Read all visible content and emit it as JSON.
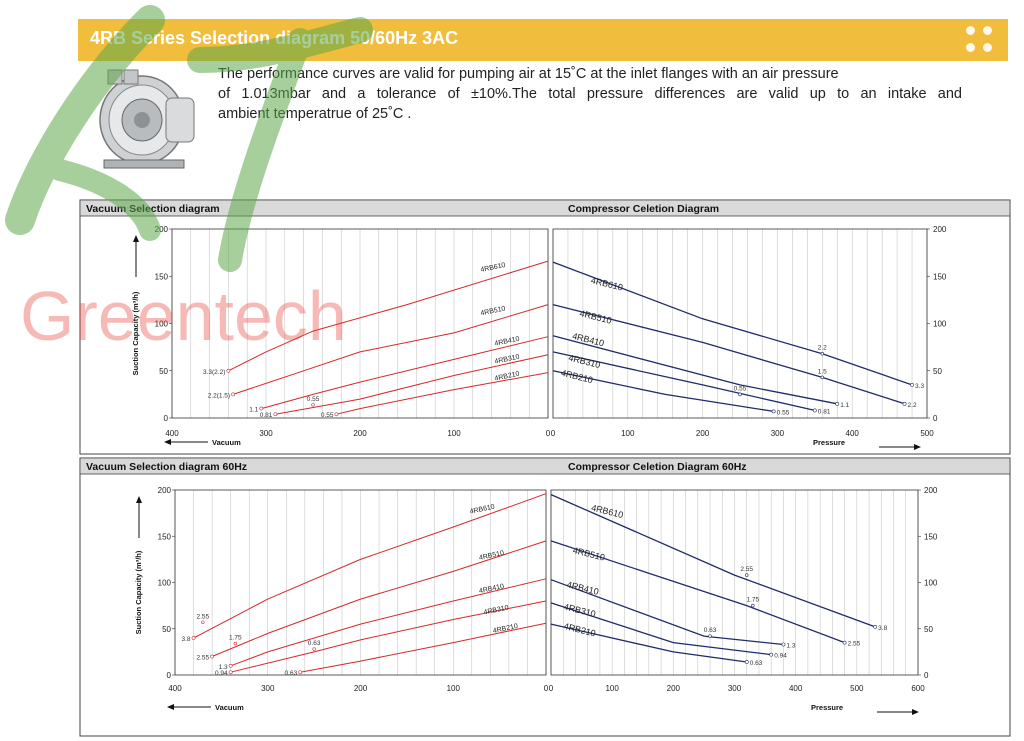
{
  "header": {
    "title": "4RB Series Selection diagram 50/60Hz 3AC"
  },
  "description": {
    "line1": "The performance curves are valid for pumping air at 15˚C at the inlet flanges with an air pressure",
    "line2": "of 1.013mbar and a tolerance of ±10%.The total pressure differences are valid up to an intake and",
    "line3": "ambient temperatrue of 25˚C ."
  },
  "watermark": {
    "text": "Greentech",
    "logo_color": "#5fa84a",
    "text_color": "#e83a30"
  },
  "colors": {
    "vacuum_line": "#d6282b",
    "pressure_line": "#1f2b6b",
    "banner": "#f1bd3c",
    "panel_header": "#d9d9d9"
  },
  "chart_data": [
    {
      "type": "line",
      "title": "Vacuum Selection diagram",
      "xlabel": "Vacuum",
      "ylabel": "Suction Capacity (m³/h)",
      "xlim": [
        400,
        0
      ],
      "ylim": [
        0,
        200
      ],
      "x_ticks": [
        "400",
        "300",
        "200",
        "100",
        "0"
      ],
      "y_ticks": [
        "0",
        "50",
        "100",
        "150",
        "200"
      ],
      "grid": true,
      "series": [
        {
          "name": "4RB610",
          "points": [
            [
              340,
              50
            ],
            [
              300,
              70
            ],
            [
              250,
              92
            ],
            [
              150,
              120
            ],
            [
              0,
              166
            ]
          ],
          "end_label": "3.3(2.2)",
          "label_x": 45,
          "label_y": 160
        },
        {
          "name": "4RB510",
          "points": [
            [
              335,
              25
            ],
            [
              260,
              50
            ],
            [
              200,
              70
            ],
            [
              100,
              90
            ],
            [
              0,
              120
            ]
          ],
          "end_label": "2.2(1.5)",
          "label_x": 45,
          "label_y": 114
        },
        {
          "name": "4RB410",
          "points": [
            [
              305,
              10
            ],
            [
              250,
              25
            ],
            [
              200,
              38
            ],
            [
              100,
              62
            ],
            [
              0,
              86
            ]
          ],
          "end_label": "1.1",
          "label_x": 30,
          "label_y": 82
        },
        {
          "name": "4RB310",
          "points": [
            [
              290,
              4
            ],
            [
              200,
              20
            ],
            [
              100,
              45
            ],
            [
              0,
              67
            ]
          ],
          "end_label": "0.81",
          "label_x": 30,
          "label_y": 63
        },
        {
          "name": "4RB210",
          "points": [
            [
              225,
              4
            ],
            [
              200,
              10
            ],
            [
              100,
              30
            ],
            [
              0,
              48
            ]
          ],
          "end_label": "0.55",
          "label_x": 30,
          "label_y": 45
        }
      ],
      "annotations": [
        {
          "text": "0.55",
          "x": 250,
          "y": 14
        }
      ]
    },
    {
      "type": "line",
      "title": "Compressor Celetion Diagram",
      "xlabel": "Pressure",
      "ylabel": "",
      "xlim": [
        0,
        500
      ],
      "ylim": [
        0,
        200
      ],
      "x_ticks": [
        "0",
        "100",
        "200",
        "300",
        "400",
        "500"
      ],
      "y_ticks": [
        "0",
        "50",
        "100",
        "150",
        "200"
      ],
      "grid": true,
      "series": [
        {
          "name": "4RB610",
          "points": [
            [
              0,
              165
            ],
            [
              200,
              105
            ],
            [
              360,
              68
            ],
            [
              480,
              35
            ]
          ],
          "end_label": "3.3",
          "label_x": 50,
          "label_y": 143
        },
        {
          "name": "4RB510",
          "points": [
            [
              0,
              120
            ],
            [
              200,
              80
            ],
            [
              360,
              43
            ],
            [
              470,
              15
            ]
          ],
          "end_label": "2.2",
          "label_x": 35,
          "label_y": 108
        },
        {
          "name": "4RB410",
          "points": [
            [
              0,
              87
            ],
            [
              250,
              35
            ],
            [
              380,
              15
            ]
          ],
          "end_label": "1.1",
          "label_x": 25,
          "label_y": 84
        },
        {
          "name": "4RB310",
          "points": [
            [
              0,
              70
            ],
            [
              200,
              35
            ],
            [
              350,
              8
            ]
          ],
          "end_label": "0.81",
          "label_x": 20,
          "label_y": 61
        },
        {
          "name": "4RB210",
          "points": [
            [
              0,
              50
            ],
            [
              150,
              25
            ],
            [
              295,
              7
            ]
          ],
          "end_label": "0.55",
          "label_x": 10,
          "label_y": 45
        }
      ],
      "annotations": [
        {
          "text": "2.2",
          "x": 360,
          "y": 68
        },
        {
          "text": "1.5",
          "x": 360,
          "y": 43
        },
        {
          "text": "0.55",
          "x": 250,
          "y": 25
        }
      ]
    },
    {
      "type": "line",
      "title": "Vacuum Selection diagram 60Hz",
      "xlabel": "Vacuum",
      "ylabel": "Suction Capacity (m³/h)",
      "xlim": [
        400,
        0
      ],
      "ylim": [
        0,
        200
      ],
      "x_ticks": [
        "400",
        "300",
        "200",
        "100",
        "0"
      ],
      "y_ticks": [
        "0",
        "50",
        "100",
        "150",
        "200"
      ],
      "grid": true,
      "series": [
        {
          "name": "4RB610",
          "points": [
            [
              380,
              40
            ],
            [
              300,
              82
            ],
            [
              200,
              125
            ],
            [
              100,
              160
            ],
            [
              0,
              196
            ]
          ],
          "end_label": "3.8",
          "label_x": 55,
          "label_y": 180
        },
        {
          "name": "4RB510",
          "points": [
            [
              360,
              20
            ],
            [
              300,
              45
            ],
            [
              200,
              82
            ],
            [
              100,
              112
            ],
            [
              0,
              145
            ]
          ],
          "end_label": "2.55",
          "label_x": 45,
          "label_y": 130
        },
        {
          "name": "4RB410",
          "points": [
            [
              340,
              10
            ],
            [
              300,
              25
            ],
            [
              200,
              55
            ],
            [
              100,
              80
            ],
            [
              0,
              104
            ]
          ],
          "end_label": "1.3",
          "label_x": 45,
          "label_y": 94
        },
        {
          "name": "4RB310",
          "points": [
            [
              340,
              3
            ],
            [
              250,
              25
            ],
            [
              200,
              38
            ],
            [
              100,
              60
            ],
            [
              0,
              80
            ]
          ],
          "end_label": "0.94",
          "label_x": 40,
          "label_y": 71
        },
        {
          "name": "4RB210",
          "points": [
            [
              265,
              3
            ],
            [
              200,
              15
            ],
            [
              100,
              35
            ],
            [
              0,
              56
            ]
          ],
          "end_label": "0.63",
          "label_x": 30,
          "label_y": 51
        }
      ],
      "annotations": [
        {
          "text": "2.55",
          "x": 370,
          "y": 57
        },
        {
          "text": "1.75",
          "x": 335,
          "y": 34
        },
        {
          "text": "0.63",
          "x": 250,
          "y": 28
        }
      ]
    },
    {
      "type": "line",
      "title": "Compressor Celetion Diagram 60Hz",
      "xlabel": "Pressure",
      "ylabel": "",
      "xlim": [
        0,
        600
      ],
      "ylim": [
        0,
        200
      ],
      "x_ticks": [
        "0",
        "100",
        "200",
        "300",
        "400",
        "500",
        "600"
      ],
      "y_ticks": [
        "0",
        "50",
        "100",
        "150",
        "200"
      ],
      "grid": true,
      "series": [
        {
          "name": "4RB610",
          "points": [
            [
              0,
              195
            ],
            [
              300,
              108
            ],
            [
              530,
              52
            ]
          ],
          "end_label": "3.8",
          "label_x": 65,
          "label_y": 178
        },
        {
          "name": "4RB510",
          "points": [
            [
              0,
              145
            ],
            [
              320,
              75
            ],
            [
              480,
              35
            ]
          ],
          "end_label": "2.55",
          "label_x": 35,
          "label_y": 132
        },
        {
          "name": "4RB410",
          "points": [
            [
              0,
              103
            ],
            [
              250,
              42
            ],
            [
              380,
              33
            ]
          ],
          "end_label": "1.3",
          "label_x": 25,
          "label_y": 95
        },
        {
          "name": "4RB310",
          "points": [
            [
              0,
              78
            ],
            [
              200,
              35
            ],
            [
              360,
              22
            ]
          ],
          "end_label": "0.94",
          "label_x": 20,
          "label_y": 71
        },
        {
          "name": "4RB210",
          "points": [
            [
              0,
              55
            ],
            [
              200,
              25
            ],
            [
              320,
              14
            ]
          ],
          "end_label": "0.63",
          "label_x": 20,
          "label_y": 50
        }
      ],
      "annotations": [
        {
          "text": "2.55",
          "x": 320,
          "y": 108
        },
        {
          "text": "1.75",
          "x": 330,
          "y": 75
        },
        {
          "text": "0.63",
          "x": 260,
          "y": 42
        }
      ]
    }
  ]
}
